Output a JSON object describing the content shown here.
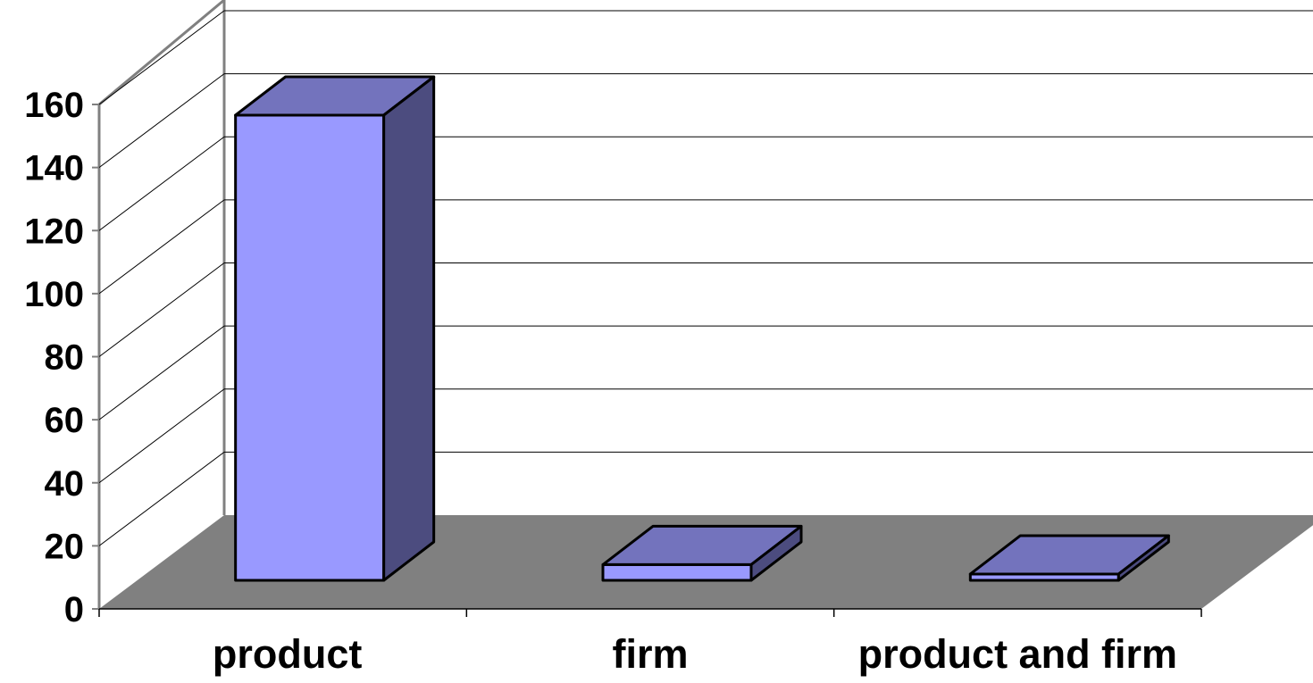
{
  "chart_data": {
    "type": "bar",
    "style": "3d-column",
    "categories": [
      "product",
      "firm",
      "product and firm"
    ],
    "values": [
      148,
      5,
      2
    ],
    "ylim": [
      0,
      160
    ],
    "yticks": [
      "0",
      "20",
      "40",
      "60",
      "80",
      "100",
      "120",
      "140",
      "160"
    ],
    "grid": true,
    "legend": "none",
    "colors": {
      "bar_front": "#9999ff",
      "bar_top": "#7373bd",
      "bar_side": "#4c4c7f",
      "floor": "#808080",
      "wall_line": "#808080",
      "gridline": "#000000"
    }
  }
}
